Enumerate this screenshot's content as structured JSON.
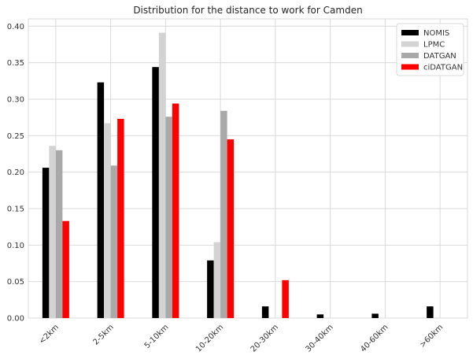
{
  "chart_data": {
    "type": "bar",
    "title": "Distribution for the distance to work for Camden",
    "xlabel": "",
    "ylabel": "",
    "ylim": [
      0,
      0.41
    ],
    "yticks": [
      "0.00",
      "0.05",
      "0.10",
      "0.15",
      "0.20",
      "0.25",
      "0.30",
      "0.35",
      "0.40"
    ],
    "grid": true,
    "legend_position": "top-right",
    "categories": [
      "<2km",
      "2-5km",
      "5-10km",
      "10-20km",
      "20-30km",
      "30-40km",
      "40-60km",
      ">60km"
    ],
    "series": [
      {
        "name": "NOMIS",
        "color": "#000000",
        "values": [
          0.206,
          0.323,
          0.344,
          0.079,
          0.016,
          0.005,
          0.006,
          0.016
        ]
      },
      {
        "name": "LPMC",
        "color": "#d3d3d3",
        "values": [
          0.236,
          0.267,
          0.391,
          0.104,
          0,
          0,
          0,
          0
        ]
      },
      {
        "name": "DATGAN",
        "color": "#a9a9a9",
        "values": [
          0.23,
          0.209,
          0.276,
          0.284,
          0,
          0,
          0,
          0
        ]
      },
      {
        "name": "ciDATGAN",
        "color": "#ff0000",
        "values": [
          0.133,
          0.273,
          0.294,
          0.245,
          0.052,
          0,
          0,
          0
        ]
      }
    ]
  }
}
